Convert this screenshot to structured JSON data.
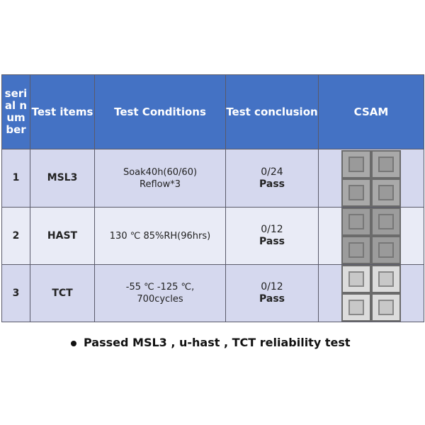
{
  "table": {
    "header": [
      "serial number",
      "Test items",
      "Test Conditions",
      "Test conclusion",
      "CSAM"
    ],
    "rows": [
      {
        "serial": "1",
        "item": "MSL3",
        "conditions": [
          "Soak40h(60/60)",
          "Reflow*3"
        ],
        "count": "0/24",
        "result": "Pass"
      },
      {
        "serial": "2",
        "item": "HAST",
        "conditions": [
          "130 ℃ 85%RH(96hrs)"
        ],
        "count": "0/12",
        "result": "Pass"
      },
      {
        "serial": "3",
        "item": "TCT",
        "conditions": [
          "-55 ℃ -125 ℃,",
          "700cycles"
        ],
        "count": "0/12",
        "result": "Pass"
      }
    ]
  },
  "note": "Passed MSL3 , u-hast , TCT reliability test"
}
